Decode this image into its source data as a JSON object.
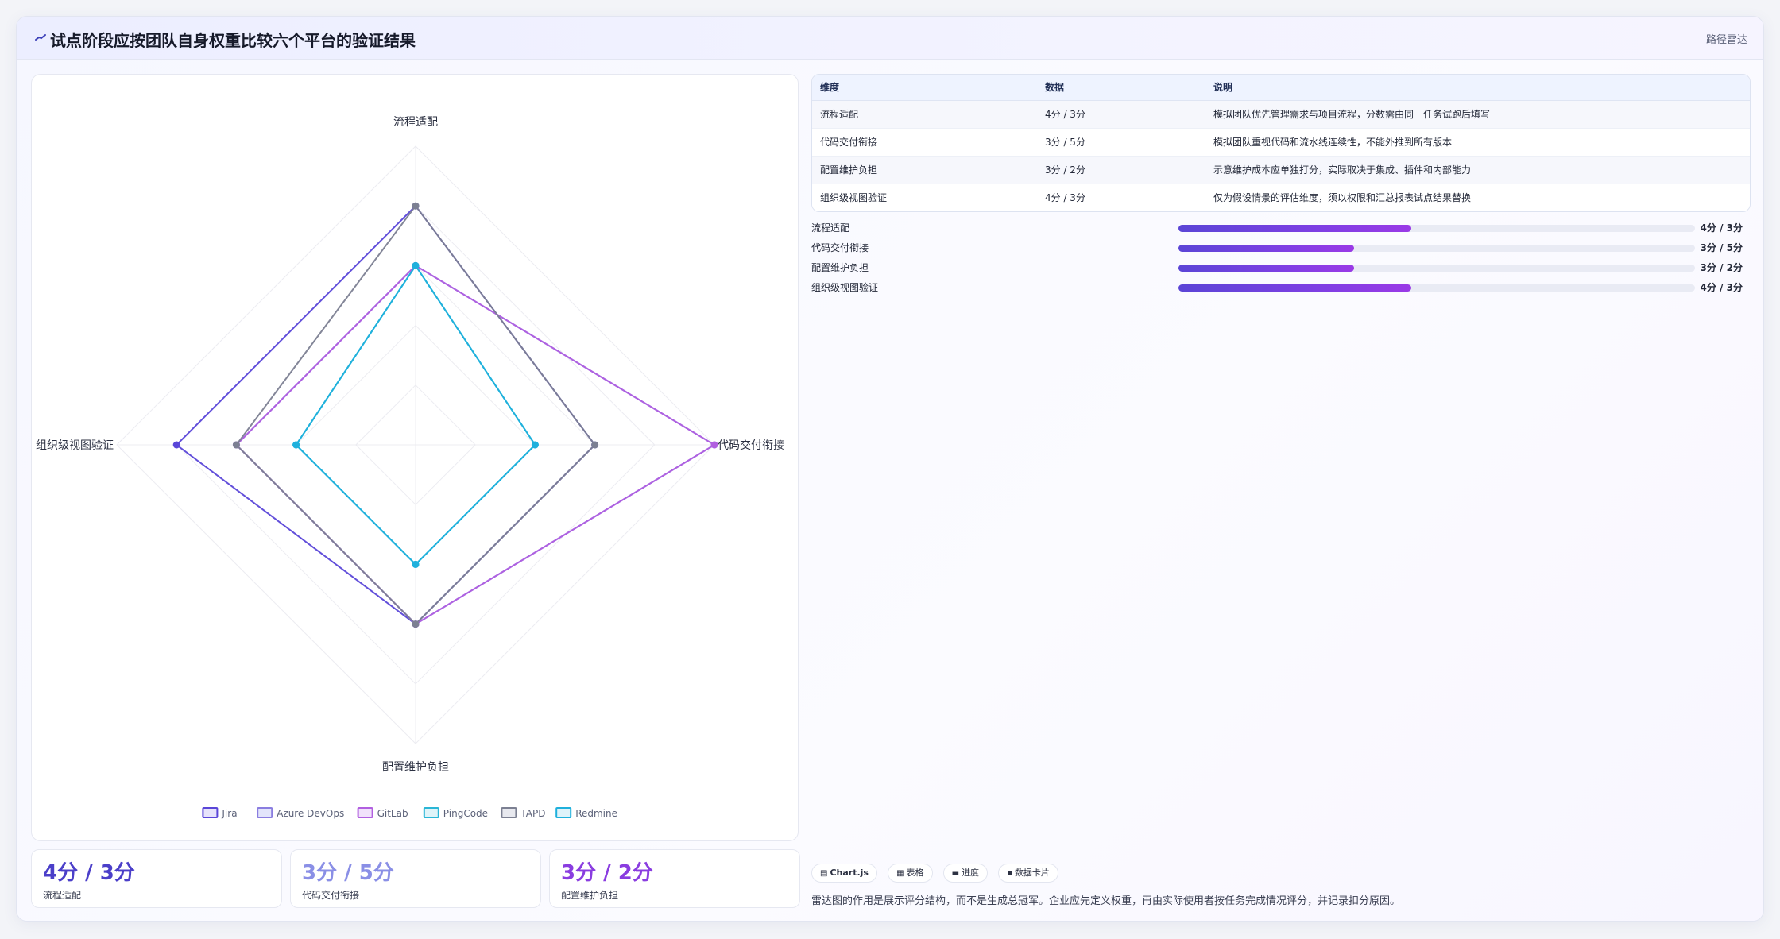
{
  "header": {
    "title": "试点阶段应按团队自身权重比较六个平台的验证结果",
    "tag": "路径雷达"
  },
  "chart_data": {
    "type": "radar",
    "axes": [
      "流程适配",
      "代码交付衔接",
      "配置维护负担",
      "组织级视图验证"
    ],
    "max": 5,
    "rings": 5,
    "series": [
      {
        "name": "Jira",
        "values": [
          4,
          3,
          3,
          4
        ],
        "color": "#5a46d8",
        "fill": "#e7e3fb"
      },
      {
        "name": "Azure DevOps",
        "values": [
          3,
          5,
          3,
          3
        ],
        "color": "#8a7de0",
        "fill": "#e3e5fb"
      },
      {
        "name": "GitLab",
        "values": [
          3,
          5,
          3,
          3
        ],
        "color": "#b15fe0",
        "fill": "#f1e2fb"
      },
      {
        "name": "PingCode",
        "values": [
          3,
          2,
          2,
          2
        ],
        "color": "#2ab6d6",
        "fill": "#dff4f9"
      },
      {
        "name": "TAPD",
        "values": [
          4,
          3,
          3,
          3
        ],
        "color": "#7c8092",
        "fill": "#e8e9ef"
      },
      {
        "name": "Redmine",
        "values": [
          3,
          2,
          2,
          2
        ],
        "color": "#1fb0dc",
        "fill": "#dff3fa"
      }
    ]
  },
  "stats": [
    {
      "value": "4分 / 3分",
      "label": "流程适配",
      "color": "#4b3fc9"
    },
    {
      "value": "3分 / 5分",
      "label": "代码交付衔接",
      "color": "#8a8fe6"
    },
    {
      "value": "3分 / 2分",
      "label": "配置维护负担",
      "color": "#8a3de0"
    }
  ],
  "table": {
    "headers": [
      "维度",
      "数据",
      "说明"
    ],
    "rows": [
      [
        "流程适配",
        "4分 / 3分",
        "模拟团队优先管理需求与项目流程，分数需由同一任务试跑后填写"
      ],
      [
        "代码交付衔接",
        "3分 / 5分",
        "模拟团队重视代码和流水线连续性，不能外推到所有版本"
      ],
      [
        "配置维护负担",
        "3分 / 2分",
        "示意维护成本应单独打分，实际取决于集成、插件和内部能力"
      ],
      [
        "组织级视图验证",
        "4分 / 3分",
        "仅为假设情景的评估维度，须以权限和汇总报表试点结果替换"
      ]
    ]
  },
  "progress": [
    {
      "name": "流程适配",
      "value": "4分 / 3分",
      "fraction": 0.45
    },
    {
      "name": "代码交付衔接",
      "value": "3分 / 5分",
      "fraction": 0.34
    },
    {
      "name": "配置维护负担",
      "value": "3分 / 2分",
      "fraction": 0.34
    },
    {
      "name": "组织级视图验证",
      "value": "4分 / 3分",
      "fraction": 0.45
    }
  ],
  "chips": [
    {
      "icon": "▤",
      "label": "Chart.js"
    },
    {
      "icon": "▦",
      "label": "表格"
    },
    {
      "icon": "▬",
      "label": "进度"
    },
    {
      "icon": "▪",
      "label": "数据卡片"
    }
  ],
  "footnote": "雷达图的作用是展示评分结构，而不是生成总冠军。企业应先定义权重，再由实际使用者按任务完成情况评分，并记录扣分原因。"
}
